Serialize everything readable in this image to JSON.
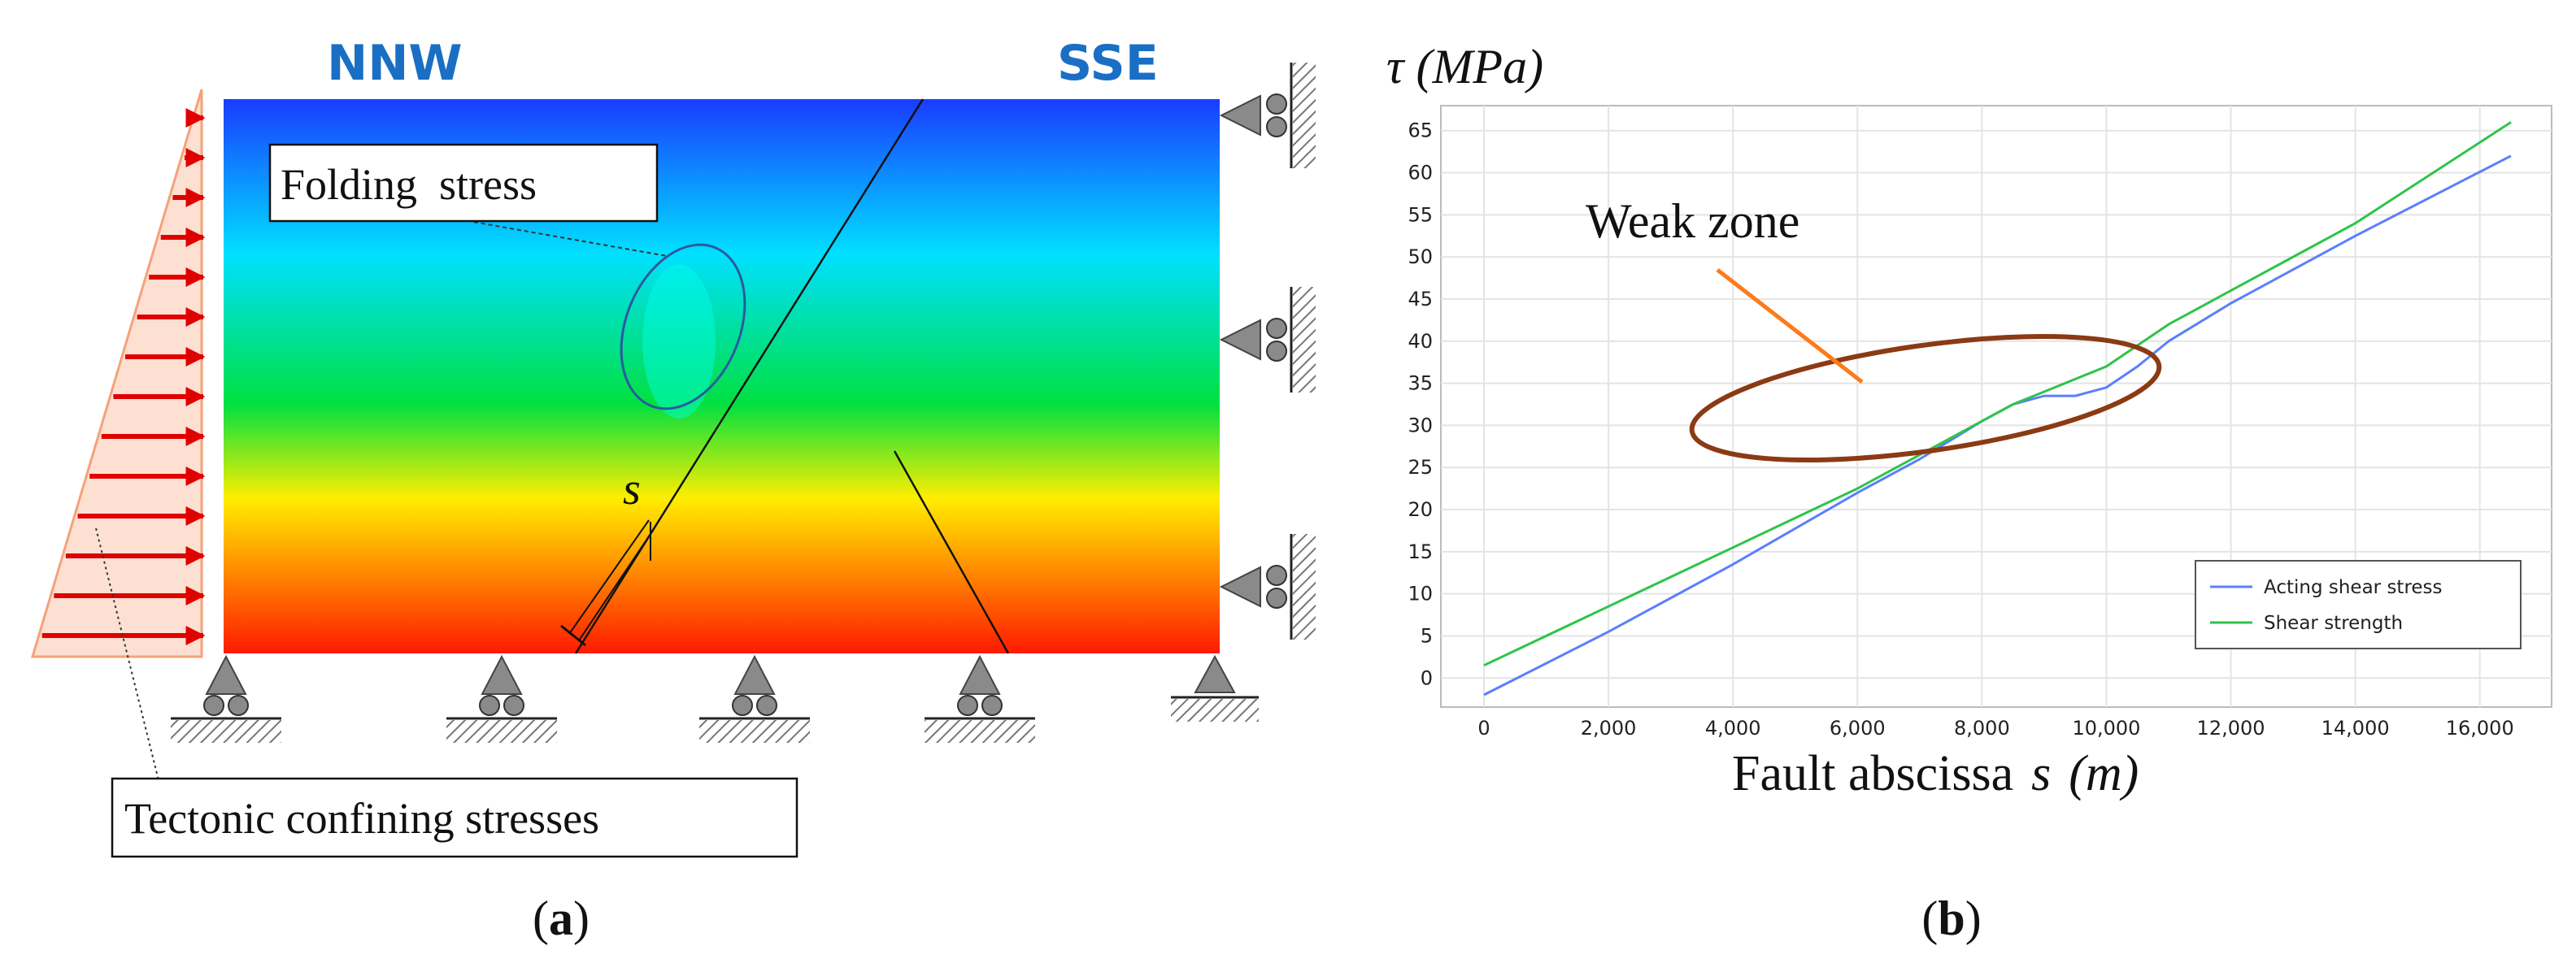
{
  "panel_a": {
    "caption_letter": "a",
    "label_left": "NNW",
    "label_right": "SSE",
    "folding_label": "Folding  stress",
    "tectonic_label": "Tectonic confining stresses",
    "s_label": "s",
    "colors": {
      "top": "#1a3cff",
      "upper_mid": "#00e0ff",
      "mid": "#00e040",
      "lower_mid": "#ffee00",
      "bottom": "#ff1a00",
      "arrow": "#e00000",
      "title_blue": "#1a6fc4"
    }
  },
  "panel_b": {
    "caption_letter": "b",
    "annotation": "Weak zone",
    "annotation_color": "#ff7a1a",
    "ellipse_color": "#8b3a14"
  },
  "chart_data": {
    "type": "line",
    "ylabel": "τ (MPa)",
    "xlabel_text": "Fault abscissa",
    "xlabel_var": "s",
    "xlabel_unit": "(m)",
    "xlim": [
      0,
      16500
    ],
    "ylim": [
      -2,
      67
    ],
    "xticks": [
      0,
      2000,
      4000,
      6000,
      8000,
      10000,
      12000,
      14000,
      16000
    ],
    "xtick_labels": [
      "0",
      "2,000",
      "4,000",
      "6,000",
      "8,000",
      "10,000",
      "12,000",
      "14,000",
      "16,000"
    ],
    "yticks": [
      0,
      5,
      10,
      15,
      20,
      25,
      30,
      35,
      40,
      45,
      50,
      55,
      60,
      65
    ],
    "grid": true,
    "legend_position": "bottom-right",
    "series": [
      {
        "name": "Acting shear stress",
        "color": "#5b7fff",
        "x": [
          0,
          2000,
          4000,
          6000,
          7000,
          8000,
          8500,
          9000,
          9500,
          10000,
          10500,
          11000,
          12000,
          14000,
          16500
        ],
        "y": [
          -2,
          5.5,
          13.5,
          22,
          26,
          30.5,
          32.5,
          33.5,
          33.5,
          34.5,
          37,
          40,
          44.5,
          52.5,
          62
        ]
      },
      {
        "name": "Shear strength",
        "color": "#2ec44a",
        "x": [
          0,
          2000,
          4000,
          6000,
          7000,
          8000,
          8500,
          9000,
          9500,
          10000,
          10500,
          11000,
          12000,
          14000,
          16500
        ],
        "y": [
          1.5,
          8.5,
          15.5,
          22.5,
          26.5,
          30.5,
          32.5,
          34,
          35.5,
          37,
          39.5,
          42,
          46,
          54,
          66
        ]
      }
    ]
  }
}
